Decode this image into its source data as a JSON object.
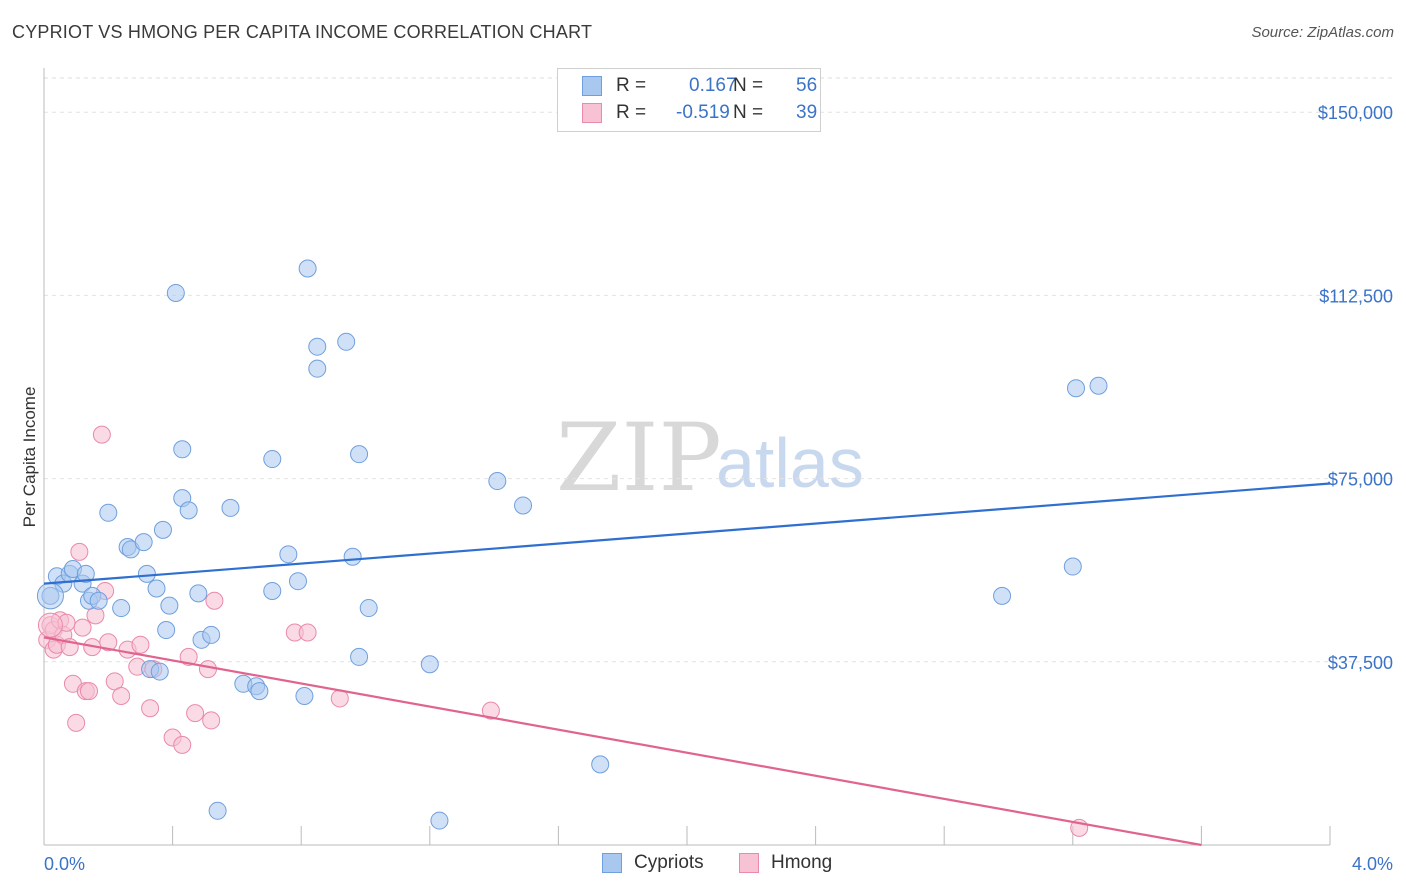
{
  "header": {
    "title": "CYPRIOT VS HMONG PER CAPITA INCOME CORRELATION CHART",
    "source": "Source: ZipAtlas.com"
  },
  "watermark": {
    "zip": "ZIP",
    "atlas": "atlas"
  },
  "stats": [
    {
      "r_label": "R =",
      "r_value": "0.167",
      "n_label": "N =",
      "n_value": "56",
      "color": "#a9c8f0",
      "border": "#6f9fdd"
    },
    {
      "r_label": "R =",
      "r_value": "-0.519",
      "n_label": "N =",
      "n_value": "39",
      "color": "#f7c2d4",
      "border": "#e98aaa"
    }
  ],
  "legend": {
    "cypriots": "Cypriots",
    "hmong": "Hmong"
  },
  "colors": {
    "cypriot_fill": "#a9c8f0",
    "cypriot_stroke": "#6f9fdd",
    "cypriot_line": "#2f6fcf",
    "hmong_fill": "#f7c2d4",
    "hmong_stroke": "#e98aaa",
    "hmong_line": "#e0648f",
    "tick_text": "#3b73c8"
  },
  "chart_data": {
    "type": "scatter",
    "title": "CYPRIOT VS HMONG PER CAPITA INCOME CORRELATION CHART",
    "xlabel": "",
    "ylabel": "Per Capita Income",
    "xlim": [
      0,
      4.0
    ],
    "ylim": [
      0,
      157000
    ],
    "x_tick_labels": [
      "0.0%",
      "4.0%"
    ],
    "y_ticks": [
      37500,
      75000,
      112500,
      150000
    ],
    "y_tick_labels": [
      "$37,500",
      "$75,000",
      "$112,500",
      "$150,000"
    ],
    "grid": true,
    "legend_position": "bottom-center",
    "series": [
      {
        "name": "Cypriots",
        "r": 0.167,
        "n": 56,
        "trend": {
          "x": [
            0.0,
            4.0
          ],
          "y": [
            53500,
            74000
          ]
        },
        "points": [
          [
            0.02,
            51000
          ],
          [
            0.04,
            55000
          ],
          [
            0.06,
            53500
          ],
          [
            0.08,
            55500
          ],
          [
            0.09,
            56500
          ],
          [
            0.12,
            53500
          ],
          [
            0.13,
            55500
          ],
          [
            0.14,
            50000
          ],
          [
            0.15,
            51000
          ],
          [
            0.17,
            50000
          ],
          [
            0.2,
            68000
          ],
          [
            0.26,
            61000
          ],
          [
            0.27,
            60500
          ],
          [
            0.31,
            62000
          ],
          [
            0.32,
            55500
          ],
          [
            0.35,
            52500
          ],
          [
            0.24,
            48500
          ],
          [
            0.33,
            36000
          ],
          [
            0.36,
            35500
          ],
          [
            0.39,
            49000
          ],
          [
            0.38,
            44000
          ],
          [
            0.43,
            71000
          ],
          [
            0.45,
            68500
          ],
          [
            0.43,
            81000
          ],
          [
            0.37,
            64500
          ],
          [
            0.41,
            113000
          ],
          [
            0.48,
            51500
          ],
          [
            0.49,
            42000
          ],
          [
            0.52,
            43000
          ],
          [
            0.58,
            69000
          ],
          [
            0.62,
            33000
          ],
          [
            0.66,
            32500
          ],
          [
            0.67,
            31500
          ],
          [
            0.71,
            79000
          ],
          [
            0.71,
            52000
          ],
          [
            0.76,
            59500
          ],
          [
            0.79,
            54000
          ],
          [
            0.81,
            30500
          ],
          [
            0.82,
            118000
          ],
          [
            0.85,
            102000
          ],
          [
            0.85,
            97500
          ],
          [
            0.94,
            103000
          ],
          [
            0.96,
            59000
          ],
          [
            0.98,
            80000
          ],
          [
            0.98,
            38500
          ],
          [
            1.01,
            48500
          ],
          [
            1.2,
            37000
          ],
          [
            1.41,
            74500
          ],
          [
            1.49,
            69500
          ],
          [
            1.73,
            16500
          ],
          [
            0.54,
            7000
          ],
          [
            1.23,
            5000
          ],
          [
            2.98,
            51000
          ],
          [
            3.2,
            57000
          ],
          [
            3.21,
            93500
          ],
          [
            3.28,
            94000
          ]
        ]
      },
      {
        "name": "Hmong",
        "r": -0.519,
        "n": 39,
        "trend": {
          "x": [
            0.0,
            3.6
          ],
          "y": [
            42500,
            0
          ]
        },
        "points": [
          [
            0.01,
            42000
          ],
          [
            0.02,
            45000
          ],
          [
            0.03,
            44000
          ],
          [
            0.03,
            40000
          ],
          [
            0.04,
            41000
          ],
          [
            0.05,
            46000
          ],
          [
            0.06,
            43000
          ],
          [
            0.07,
            45500
          ],
          [
            0.08,
            40500
          ],
          [
            0.09,
            33000
          ],
          [
            0.1,
            25000
          ],
          [
            0.11,
            60000
          ],
          [
            0.12,
            44500
          ],
          [
            0.13,
            31500
          ],
          [
            0.14,
            31500
          ],
          [
            0.15,
            40500
          ],
          [
            0.16,
            47000
          ],
          [
            0.18,
            84000
          ],
          [
            0.19,
            52000
          ],
          [
            0.2,
            41500
          ],
          [
            0.22,
            33500
          ],
          [
            0.24,
            30500
          ],
          [
            0.26,
            40000
          ],
          [
            0.29,
            36500
          ],
          [
            0.3,
            41000
          ],
          [
            0.33,
            28000
          ],
          [
            0.34,
            36000
          ],
          [
            0.4,
            22000
          ],
          [
            0.43,
            20500
          ],
          [
            0.45,
            38500
          ],
          [
            0.47,
            27000
          ],
          [
            0.51,
            36000
          ],
          [
            0.52,
            25500
          ],
          [
            0.53,
            50000
          ],
          [
            0.78,
            43500
          ],
          [
            0.82,
            43500
          ],
          [
            0.92,
            30000
          ],
          [
            1.39,
            27500
          ],
          [
            3.22,
            3500
          ]
        ]
      }
    ]
  }
}
